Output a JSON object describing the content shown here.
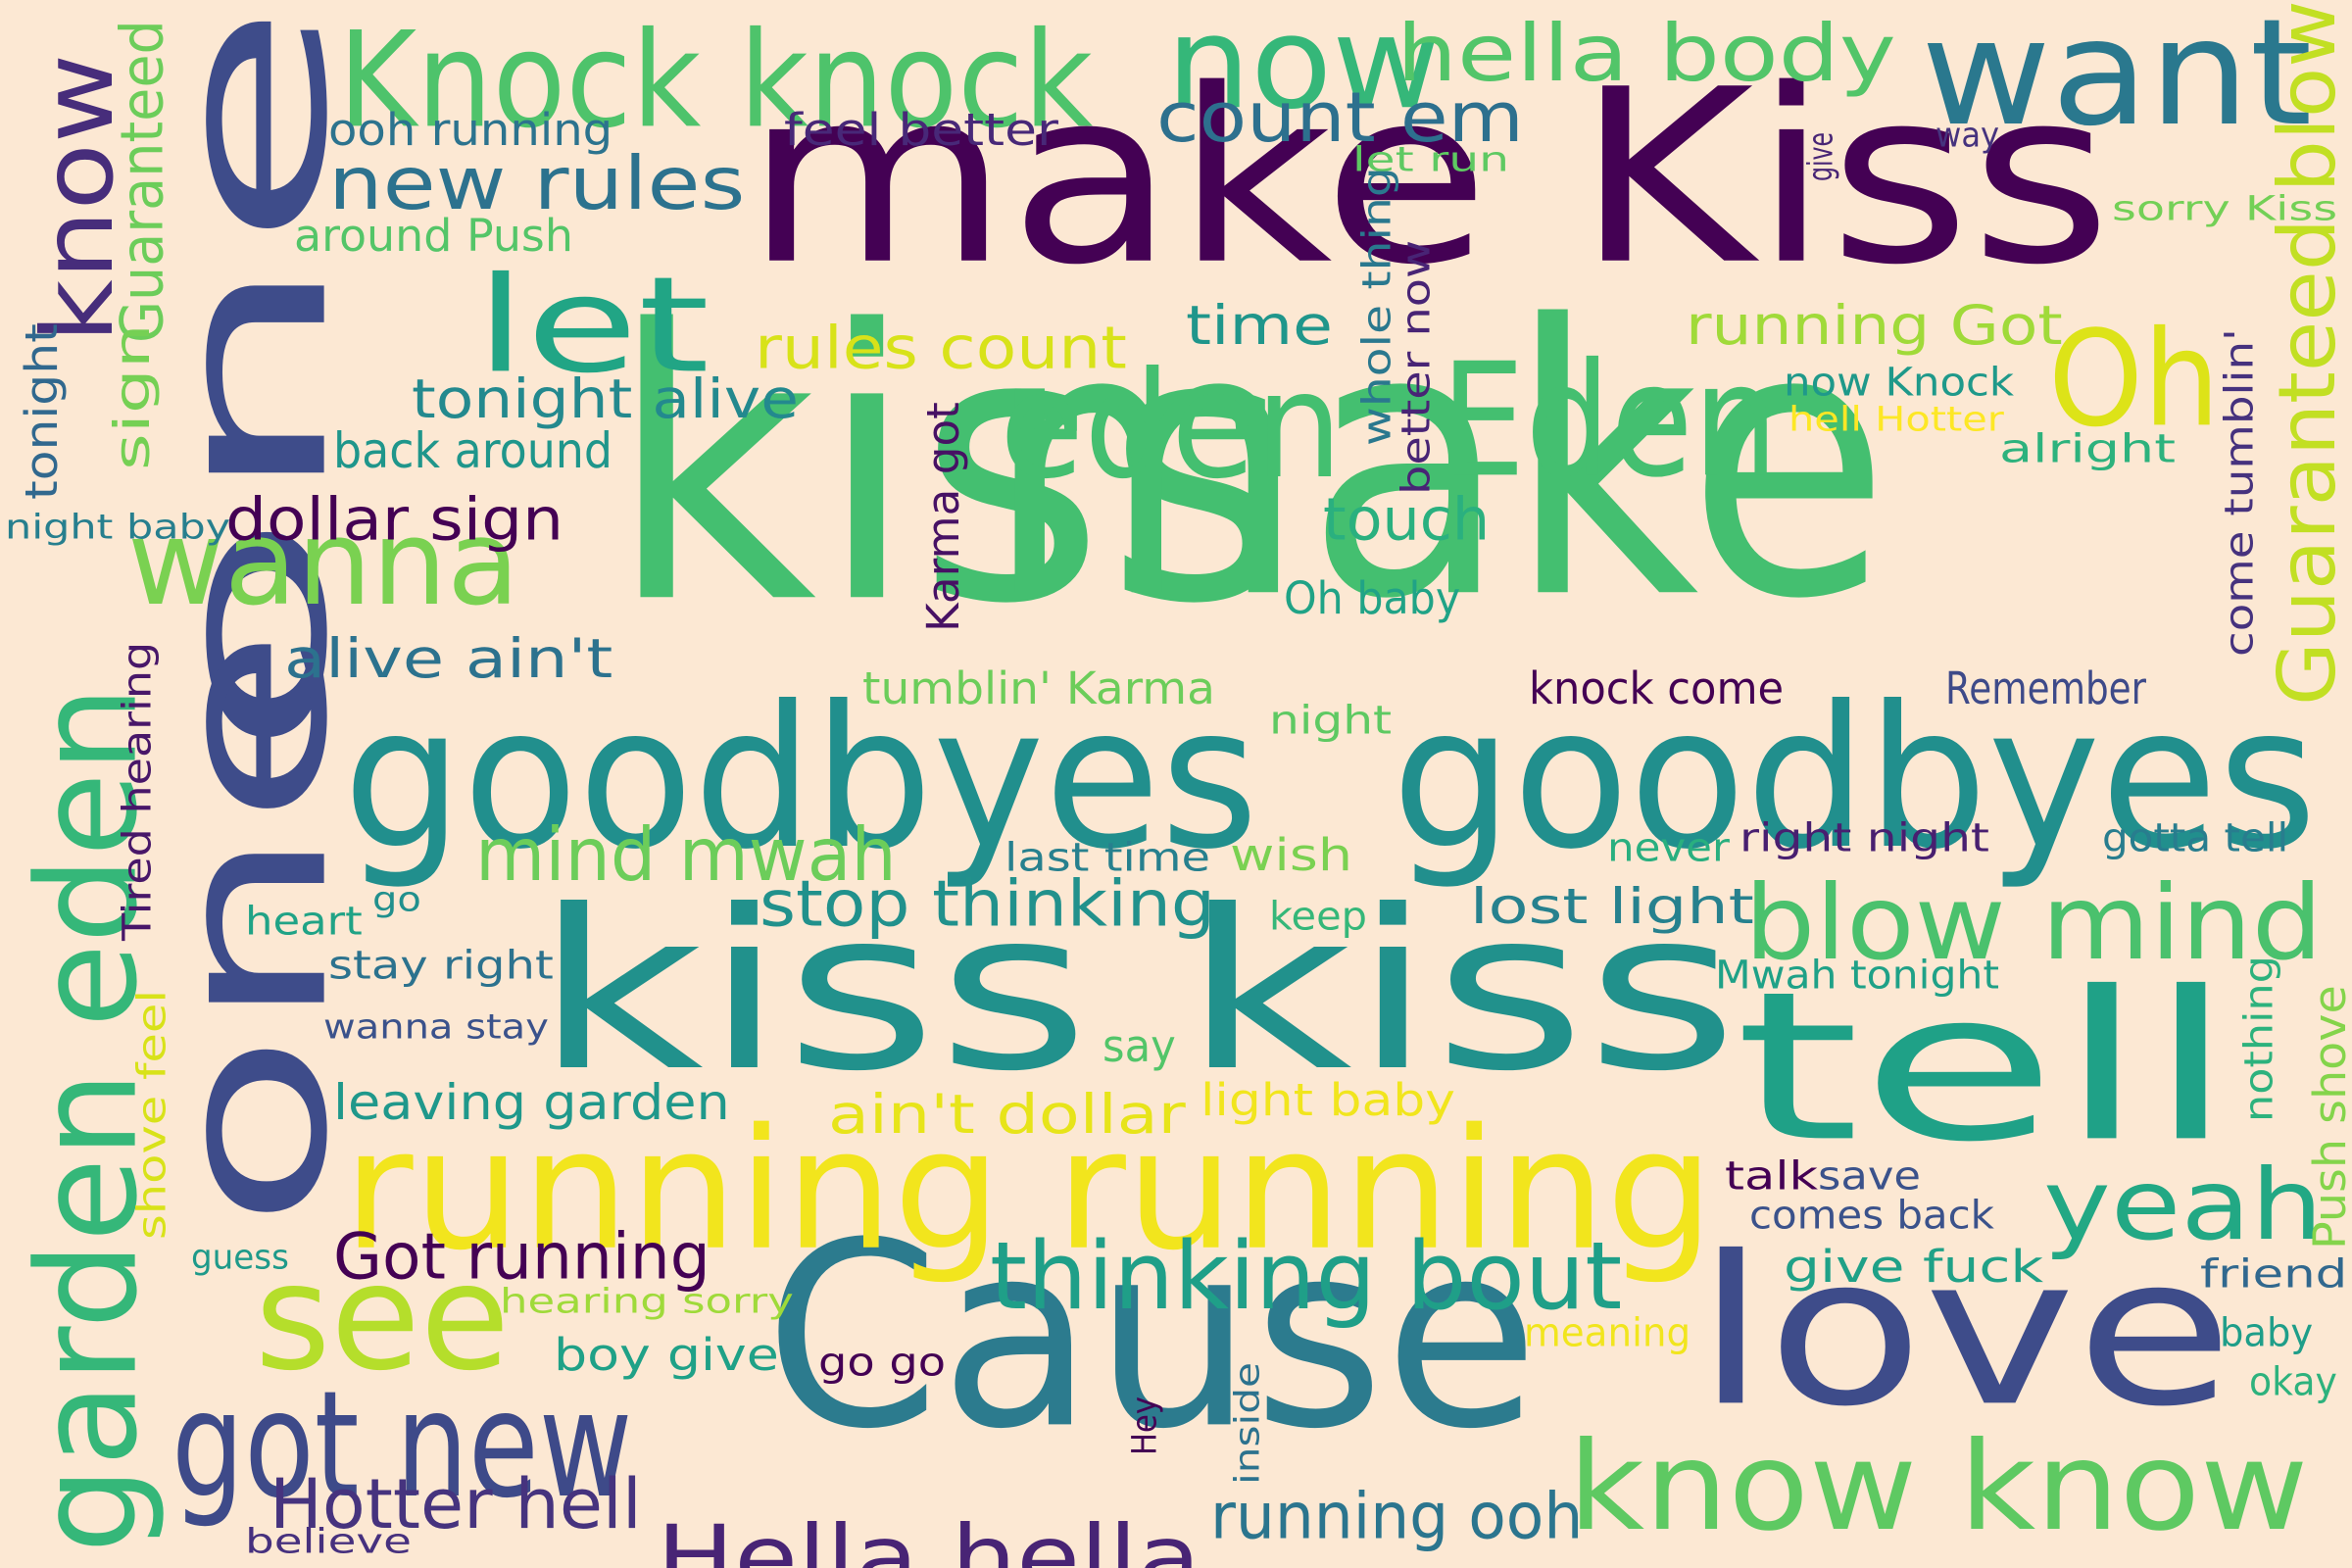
{
  "background": "#fce8d3",
  "words": [
    {
      "text": "make Kiss",
      "color": "#440154"
    },
    {
      "text": "kiss",
      "color": "#44bf70"
    },
    {
      "text": "make",
      "color": "#44bf70"
    },
    {
      "text": "one",
      "color": "#3e4c8a"
    },
    {
      "text": "one",
      "color": "#3e4c8a"
    },
    {
      "text": "goodbyes",
      "color": "#218f8d"
    },
    {
      "text": "goodbyes",
      "color": "#218f8d"
    },
    {
      "text": "kiss kiss",
      "color": "#21918c"
    },
    {
      "text": "Cause",
      "color": "#2c7b8e"
    },
    {
      "text": "tell",
      "color": "#1fa187"
    },
    {
      "text": "running running",
      "color": "#f2e51d"
    },
    {
      "text": "love",
      "color": "#3e4c8a"
    },
    {
      "text": "Knock knock",
      "color": "#4ec36b"
    },
    {
      "text": "want",
      "color": "#2a788e"
    },
    {
      "text": "now",
      "color": "#35b779"
    },
    {
      "text": "hella body",
      "color": "#52c569"
    },
    {
      "text": "eden",
      "color": "#44bf70"
    },
    {
      "text": "Eden",
      "color": "#44bf70"
    },
    {
      "text": "Oh",
      "color": "#dde318"
    },
    {
      "text": "let",
      "color": "#21a585"
    },
    {
      "text": "wanna",
      "color": "#7ad151"
    },
    {
      "text": "garden eden",
      "color": "#35b779"
    },
    {
      "text": "know",
      "color": "#472d7b"
    },
    {
      "text": "see",
      "color": "#b5de2b"
    },
    {
      "text": "got new",
      "color": "#3e4a89"
    },
    {
      "text": "know know",
      "color": "#5ec962"
    },
    {
      "text": "blow mind",
      "color": "#4ac16d"
    },
    {
      "text": "yeah",
      "color": "#22a884"
    },
    {
      "text": "thinking bout",
      "color": "#1f9f88"
    },
    {
      "text": "Hella hella",
      "color": "#482475"
    },
    {
      "text": "mind mwah",
      "color": "#6ccd5a"
    },
    {
      "text": "new rules",
      "color": "#2c728e"
    },
    {
      "text": "count em",
      "color": "#2d708e"
    },
    {
      "text": "stop thinking",
      "color": "#21918c"
    },
    {
      "text": "Guaranteed blow",
      "color": "#c2df23"
    },
    {
      "text": "Hotter hell",
      "color": "#46337e"
    },
    {
      "text": "running ooh",
      "color": "#2b758e"
    },
    {
      "text": "Got running",
      "color": "#440154"
    },
    {
      "text": "dollar sign",
      "color": "#440154"
    },
    {
      "text": "touch",
      "color": "#2ab07f"
    },
    {
      "text": "tonight alive",
      "color": "#23898e"
    },
    {
      "text": "rules count",
      "color": "#d8e219"
    },
    {
      "text": "running Got",
      "color": "#a0da39"
    },
    {
      "text": "time",
      "color": "#1f968b"
    },
    {
      "text": "alive ain't",
      "color": "#2c728e"
    },
    {
      "text": "ain't dollar",
      "color": "#e7e419"
    },
    {
      "text": "leaving garden",
      "color": "#1f988b"
    },
    {
      "text": "lost light",
      "color": "#26818e"
    },
    {
      "text": "back around",
      "color": "#1f968b"
    },
    {
      "text": "around Push",
      "color": "#54c568"
    },
    {
      "text": "ooh running",
      "color": "#2c738e"
    },
    {
      "text": "feel better",
      "color": "#482878"
    },
    {
      "text": "Oh baby",
      "color": "#20a386"
    },
    {
      "text": "tumblin' Karma",
      "color": "#6ccd5a"
    },
    {
      "text": "knock come",
      "color": "#440154"
    },
    {
      "text": "Remember",
      "color": "#3e4a89"
    },
    {
      "text": "night",
      "color": "#5ec962"
    },
    {
      "text": "wish",
      "color": "#7ad151"
    },
    {
      "text": "last time",
      "color": "#27808e"
    },
    {
      "text": "right night",
      "color": "#481f70"
    },
    {
      "text": "gotta tell",
      "color": "#287d8e"
    },
    {
      "text": "never",
      "color": "#29af7f"
    },
    {
      "text": "keep",
      "color": "#35b779"
    },
    {
      "text": "Mwah tonight",
      "color": "#1fa187"
    },
    {
      "text": "go go",
      "color": "#440154"
    },
    {
      "text": "light baby",
      "color": "#f1e51d"
    },
    {
      "text": "say",
      "color": "#52c569"
    },
    {
      "text": "save",
      "color": "#3b528b"
    },
    {
      "text": "talk",
      "color": "#440154"
    },
    {
      "text": "comes back",
      "color": "#3b528b"
    },
    {
      "text": "give fuck",
      "color": "#1fa187"
    },
    {
      "text": "friend",
      "color": "#31688e"
    },
    {
      "text": "baby",
      "color": "#1f9e89"
    },
    {
      "text": "okay",
      "color": "#2db27d"
    },
    {
      "text": "boy give",
      "color": "#1fa187"
    },
    {
      "text": "hearing sorry",
      "color": "#9fda3a"
    },
    {
      "text": "meaning",
      "color": "#f1e51d"
    },
    {
      "text": "wanna stay",
      "color": "#3b528b"
    },
    {
      "text": "stay right",
      "color": "#2c728e"
    },
    {
      "text": "heart",
      "color": "#20a386"
    },
    {
      "text": "go",
      "color": "#21908d"
    },
    {
      "text": "guess",
      "color": "#1f9a8a"
    },
    {
      "text": "believe",
      "color": "#46307e"
    },
    {
      "text": "night baby",
      "color": "#277f8e"
    },
    {
      "text": "now Knock",
      "color": "#1f998a"
    },
    {
      "text": "hell Hotter",
      "color": "#fde725"
    },
    {
      "text": "alright",
      "color": "#2db27d"
    },
    {
      "text": "sorry Kiss",
      "color": "#73d056"
    },
    {
      "text": "let run",
      "color": "#5ec962"
    },
    {
      "text": "way",
      "color": "#46337e"
    },
    {
      "text": "Guaranteed",
      "color": "#6ccd5a"
    },
    {
      "text": "sign",
      "color": "#75d054"
    },
    {
      "text": "tonight",
      "color": "#31688e"
    },
    {
      "text": "Tired hearing",
      "color": "#481769"
    },
    {
      "text": "shove feel",
      "color": "#d8e219"
    },
    {
      "text": "Karma got",
      "color": "#471164"
    },
    {
      "text": "whole thing",
      "color": "#2a788e"
    },
    {
      "text": "better now",
      "color": "#482475"
    },
    {
      "text": "give",
      "color": "#482575"
    },
    {
      "text": "come tumblin'",
      "color": "#46327e"
    },
    {
      "text": "Push shove",
      "color": "#84d44b"
    },
    {
      "text": "nothing",
      "color": "#2db27d"
    },
    {
      "text": "Hey",
      "color": "#440154"
    },
    {
      "text": "inside",
      "color": "#2c728e"
    }
  ]
}
